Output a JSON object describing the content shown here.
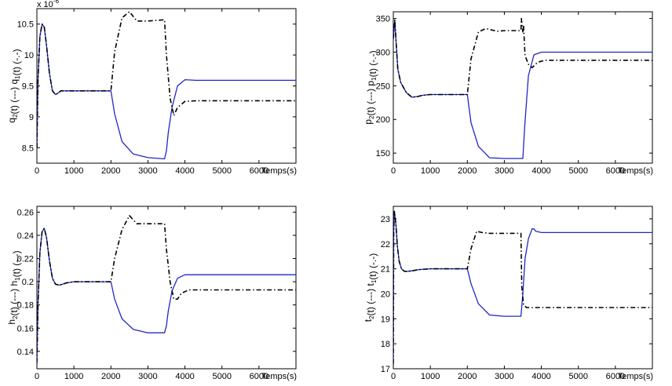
{
  "colors": {
    "solid": "#1f28c8",
    "dashdot": "#000000",
    "axes": "#000000",
    "background": "#ffffff"
  },
  "chart_data": [
    {
      "type": "line",
      "ylabel": {
        "a": "q",
        "a_sub": "2",
        "b": "(t) (---) q",
        "b_sub": "1",
        "c": "(t) (-.-)"
      },
      "xlabel": "Temps(s)",
      "exponent": "x 10",
      "exponent_power": "-6",
      "xlim": [
        0,
        7000
      ],
      "ylim": [
        8.25,
        10.75
      ],
      "xticks": [
        0,
        1000,
        2000,
        3000,
        4000,
        5000,
        6000
      ],
      "yticks": [
        8.5,
        9,
        9.5,
        10,
        10.5
      ],
      "ytick_labels": [
        "8.5",
        "9",
        "9.5",
        "10",
        "10.5"
      ],
      "series": [
        {
          "style": "solid",
          "x": [
            0,
            30,
            80,
            140,
            200,
            260,
            340,
            420,
            500,
            560,
            650,
            800,
            1000,
            2000,
            2100,
            2300,
            2600,
            3000,
            3450,
            3500,
            3550,
            3650,
            3800,
            4000,
            4300,
            7000
          ],
          "y": [
            8.5,
            9.6,
            10.3,
            10.5,
            10.45,
            10.15,
            9.7,
            9.42,
            9.36,
            9.38,
            9.42,
            9.42,
            9.42,
            9.42,
            9.05,
            8.6,
            8.4,
            8.34,
            8.32,
            8.45,
            8.75,
            9.15,
            9.5,
            9.6,
            9.59,
            9.59
          ]
        },
        {
          "style": "dashdot",
          "x": [
            0,
            30,
            80,
            140,
            200,
            260,
            340,
            420,
            500,
            560,
            650,
            800,
            1000,
            2000,
            2100,
            2300,
            2500,
            2700,
            3000,
            3450,
            3500,
            3600,
            3700,
            3800,
            4000,
            4300,
            7000
          ],
          "y": [
            8.5,
            9.6,
            10.3,
            10.5,
            10.45,
            10.15,
            9.7,
            9.42,
            9.36,
            9.38,
            9.42,
            9.42,
            9.42,
            9.42,
            10.05,
            10.6,
            10.7,
            10.55,
            10.55,
            10.57,
            10.0,
            9.3,
            9.02,
            9.15,
            9.25,
            9.26,
            9.26
          ]
        }
      ]
    },
    {
      "type": "line",
      "ylabel": {
        "a": "p",
        "a_sub": "2",
        "b": "(t) (---) p",
        "b_sub": "1",
        "c": "(t) (-.-)"
      },
      "xlabel": "Temps(s)",
      "xlim": [
        0,
        7000
      ],
      "ylim": [
        135,
        360
      ],
      "xticks": [
        0,
        1000,
        2000,
        3000,
        4000,
        5000,
        6000
      ],
      "yticks": [
        150,
        200,
        250,
        300,
        350
      ],
      "ytick_labels": [
        "150",
        "200",
        "250",
        "300",
        "350"
      ],
      "series": [
        {
          "style": "solid",
          "x": [
            0,
            40,
            70,
            120,
            200,
            350,
            500,
            650,
            800,
            1000,
            2000,
            2100,
            2300,
            2600,
            3000,
            3500,
            3550,
            3650,
            3800,
            4000,
            7000
          ],
          "y": [
            320,
            348,
            320,
            275,
            255,
            240,
            233,
            234,
            236,
            237,
            237,
            195,
            160,
            143,
            142,
            142,
            190,
            265,
            296,
            300,
            300
          ]
        },
        {
          "style": "dashdot",
          "x": [
            0,
            40,
            70,
            120,
            200,
            350,
            500,
            650,
            800,
            1000,
            2000,
            2100,
            2300,
            2500,
            2800,
            3000,
            3450,
            3460,
            3500,
            3520,
            3560,
            3650,
            3750,
            3900,
            4100,
            7000
          ],
          "y": [
            320,
            348,
            320,
            275,
            255,
            240,
            233,
            234,
            236,
            237,
            237,
            290,
            330,
            335,
            331,
            332,
            332,
            350,
            330,
            340,
            295,
            282,
            277,
            285,
            288,
            288
          ]
        }
      ]
    },
    {
      "type": "line",
      "ylabel": {
        "a": "h",
        "a_sub": "2",
        "b": "(t) (---) h",
        "b_sub": "1",
        "c": "(t) (-.-)"
      },
      "xlabel": "Temps(s)",
      "xlim": [
        0,
        7000
      ],
      "ylim": [
        0.125,
        0.265
      ],
      "xticks": [
        0,
        1000,
        2000,
        3000,
        4000,
        5000,
        6000
      ],
      "yticks": [
        0.14,
        0.16,
        0.18,
        0.2,
        0.22,
        0.24,
        0.26
      ],
      "ytick_labels": [
        "0.14",
        "0.16",
        "0.18",
        "0.2",
        "0.22",
        "0.24",
        "0.26"
      ],
      "series": [
        {
          "style": "solid",
          "x": [
            0,
            30,
            80,
            140,
            200,
            260,
            340,
            420,
            500,
            600,
            700,
            800,
            1000,
            2000,
            2100,
            2300,
            2600,
            3000,
            3450,
            3500,
            3550,
            3650,
            3800,
            4000,
            4300,
            7000
          ],
          "y": [
            0.13,
            0.18,
            0.225,
            0.243,
            0.246,
            0.238,
            0.218,
            0.203,
            0.198,
            0.197,
            0.198,
            0.199,
            0.2,
            0.2,
            0.185,
            0.168,
            0.159,
            0.156,
            0.156,
            0.162,
            0.175,
            0.192,
            0.203,
            0.206,
            0.206,
            0.206
          ]
        },
        {
          "style": "dashdot",
          "x": [
            0,
            30,
            80,
            140,
            200,
            260,
            340,
            420,
            500,
            600,
            700,
            800,
            1000,
            2000,
            2100,
            2300,
            2500,
            2700,
            3000,
            3450,
            3500,
            3600,
            3700,
            3800,
            3900,
            4100,
            4400,
            7000
          ],
          "y": [
            0.13,
            0.18,
            0.225,
            0.243,
            0.246,
            0.238,
            0.218,
            0.203,
            0.198,
            0.197,
            0.198,
            0.199,
            0.2,
            0.2,
            0.22,
            0.245,
            0.257,
            0.25,
            0.25,
            0.25,
            0.228,
            0.2,
            0.185,
            0.185,
            0.19,
            0.193,
            0.193,
            0.193
          ]
        }
      ]
    },
    {
      "type": "line",
      "ylabel": {
        "a": "t",
        "a_sub": "2",
        "b": "(t) (---) t",
        "b_sub": "1",
        "c": "(t) (-.-)"
      },
      "xlabel": "Temps(s)",
      "xlim": [
        0,
        7000
      ],
      "ylim": [
        17,
        23.5
      ],
      "xticks": [
        0,
        1000,
        2000,
        3000,
        4000,
        5000,
        6000
      ],
      "yticks": [
        17,
        18,
        19,
        20,
        21,
        22,
        23
      ],
      "ytick_labels": [
        "17",
        "18",
        "19",
        "20",
        "21",
        "22",
        "23"
      ],
      "series": [
        {
          "style": "solid",
          "x": [
            0,
            10,
            30,
            70,
            110,
            160,
            220,
            300,
            400,
            500,
            700,
            1000,
            2000,
            2100,
            2300,
            2600,
            3000,
            3450,
            3500,
            3560,
            3650,
            3750,
            3800,
            3850,
            4000,
            7000
          ],
          "y": [
            17.2,
            22.5,
            23.3,
            22.8,
            21.9,
            21.3,
            21.0,
            20.9,
            20.9,
            20.92,
            20.97,
            21.0,
            21.0,
            20.4,
            19.6,
            19.15,
            19.1,
            19.1,
            20.0,
            21.4,
            22.2,
            22.6,
            22.6,
            22.5,
            22.45,
            22.45
          ]
        },
        {
          "style": "dashdot",
          "x": [
            0,
            10,
            30,
            70,
            110,
            160,
            220,
            300,
            400,
            500,
            700,
            1000,
            2000,
            2100,
            2250,
            2400,
            2600,
            3000,
            3450,
            3470,
            3520,
            3600,
            3800,
            4200,
            7000
          ],
          "y": [
            17.2,
            22.5,
            23.3,
            22.8,
            21.9,
            21.3,
            21.0,
            20.9,
            20.9,
            20.92,
            20.97,
            21.0,
            21.0,
            21.8,
            22.5,
            22.45,
            22.42,
            22.42,
            22.42,
            20.3,
            19.55,
            19.45,
            19.45,
            19.45,
            19.45
          ]
        }
      ]
    }
  ]
}
